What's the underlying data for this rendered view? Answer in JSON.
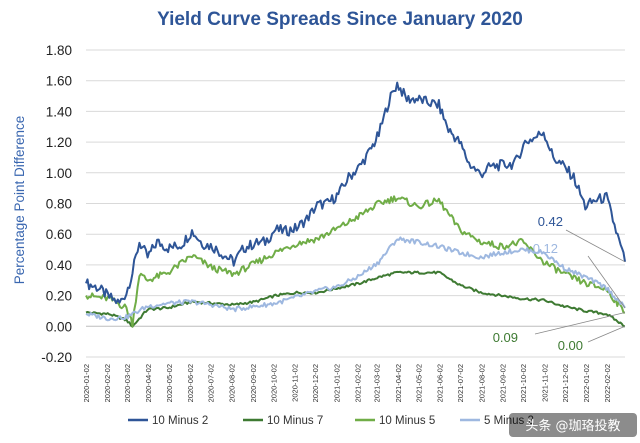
{
  "chart_data": {
    "type": "line",
    "title": "Yield Curve Spreads Since January 2020",
    "ylabel": "Percentage Point Difference",
    "xlabel": "",
    "ylim": [
      -0.2,
      1.8
    ],
    "yticks": [
      "1.80",
      "1.60",
      "1.40",
      "1.20",
      "1.00",
      "0.80",
      "0.60",
      "0.40",
      "0.20",
      "0.00",
      "-0.20"
    ],
    "x_tick_labels": [
      "2020-01-02",
      "2020-02-02",
      "2020-03-02",
      "2020-04-02",
      "2020-05-02",
      "2020-06-02",
      "2020-07-02",
      "2020-08-02",
      "2020-09-02",
      "2020-10-02",
      "2020-11-02",
      "2020-12-02",
      "2021-01-02",
      "2021-02-02",
      "2021-03-02",
      "2021-04-02",
      "2021-05-02",
      "2021-06-02",
      "2021-07-02",
      "2021-08-02",
      "2021-09-02",
      "2021-10-02",
      "2021-11-02",
      "2021-12-02",
      "2022-01-02",
      "2022-02-02"
    ],
    "grid": true,
    "legend_position": "bottom",
    "series": [
      {
        "name": "10 Minus 2",
        "color": "#2E5597",
        "points": [
          [
            "2020-01-02",
            0.28
          ],
          [
            "2020-01-20",
            0.25
          ],
          [
            "2020-02-05",
            0.19
          ],
          [
            "2020-02-20",
            0.15
          ],
          [
            "2020-03-01",
            0.22
          ],
          [
            "2020-03-10",
            0.35
          ],
          [
            "2020-03-20",
            0.55
          ],
          [
            "2020-04-01",
            0.45
          ],
          [
            "2020-04-15",
            0.55
          ],
          [
            "2020-05-01",
            0.51
          ],
          [
            "2020-05-20",
            0.53
          ],
          [
            "2020-06-05",
            0.62
          ],
          [
            "2020-06-20",
            0.54
          ],
          [
            "2020-07-05",
            0.52
          ],
          [
            "2020-07-20",
            0.47
          ],
          [
            "2020-08-05",
            0.42
          ],
          [
            "2020-08-20",
            0.51
          ],
          [
            "2020-09-05",
            0.54
          ],
          [
            "2020-09-20",
            0.55
          ],
          [
            "2020-10-05",
            0.63
          ],
          [
            "2020-10-20",
            0.62
          ],
          [
            "2020-11-05",
            0.64
          ],
          [
            "2020-11-20",
            0.7
          ],
          [
            "2020-12-05",
            0.79
          ],
          [
            "2020-12-20",
            0.8
          ],
          [
            "2021-01-05",
            0.86
          ],
          [
            "2021-01-20",
            0.97
          ],
          [
            "2021-02-05",
            1.04
          ],
          [
            "2021-02-20",
            1.14
          ],
          [
            "2021-03-05",
            1.25
          ],
          [
            "2021-03-20",
            1.47
          ],
          [
            "2021-04-01",
            1.58
          ],
          [
            "2021-04-15",
            1.48
          ],
          [
            "2021-05-01",
            1.48
          ],
          [
            "2021-05-15",
            1.46
          ],
          [
            "2021-06-01",
            1.44
          ],
          [
            "2021-06-15",
            1.28
          ],
          [
            "2021-07-01",
            1.2
          ],
          [
            "2021-07-15",
            1.06
          ],
          [
            "2021-08-01",
            0.99
          ],
          [
            "2021-08-15",
            1.04
          ],
          [
            "2021-09-01",
            1.05
          ],
          [
            "2021-09-20",
            1.06
          ],
          [
            "2021-10-05",
            1.2
          ],
          [
            "2021-10-20",
            1.23
          ],
          [
            "2021-11-01",
            1.27
          ],
          [
            "2021-11-15",
            1.1
          ],
          [
            "2021-12-01",
            1.04
          ],
          [
            "2021-12-15",
            0.97
          ],
          [
            "2022-01-01",
            0.78
          ],
          [
            "2022-01-15",
            0.82
          ],
          [
            "2022-02-01",
            0.84
          ],
          [
            "2022-02-15",
            0.62
          ],
          [
            "2022-02-28",
            0.42
          ]
        ]
      },
      {
        "name": "10 Minus 7",
        "color": "#3E7A32",
        "points": [
          [
            "2020-01-02",
            0.09
          ],
          [
            "2020-02-05",
            0.08
          ],
          [
            "2020-03-01",
            0.04
          ],
          [
            "2020-03-10",
            0.0
          ],
          [
            "2020-04-01",
            0.11
          ],
          [
            "2020-05-01",
            0.12
          ],
          [
            "2020-06-05",
            0.16
          ],
          [
            "2020-07-05",
            0.15
          ],
          [
            "2020-08-05",
            0.14
          ],
          [
            "2020-09-05",
            0.16
          ],
          [
            "2020-10-05",
            0.2
          ],
          [
            "2020-11-05",
            0.22
          ],
          [
            "2020-12-05",
            0.22
          ],
          [
            "2021-01-05",
            0.25
          ],
          [
            "2021-02-05",
            0.28
          ],
          [
            "2021-03-05",
            0.32
          ],
          [
            "2021-04-01",
            0.35
          ],
          [
            "2021-05-01",
            0.35
          ],
          [
            "2021-06-01",
            0.35
          ],
          [
            "2021-07-01",
            0.27
          ],
          [
            "2021-08-01",
            0.22
          ],
          [
            "2021-09-01",
            0.2
          ],
          [
            "2021-10-01",
            0.18
          ],
          [
            "2021-11-01",
            0.17
          ],
          [
            "2021-12-01",
            0.13
          ],
          [
            "2022-01-01",
            0.1
          ],
          [
            "2022-02-01",
            0.08
          ],
          [
            "2022-02-28",
            0.0
          ]
        ]
      },
      {
        "name": "10 Minus 5",
        "color": "#70AD47",
        "points": [
          [
            "2020-01-02",
            0.2
          ],
          [
            "2020-02-05",
            0.18
          ],
          [
            "2020-03-01",
            0.12
          ],
          [
            "2020-03-10",
            0.02
          ],
          [
            "2020-03-20",
            0.34
          ],
          [
            "2020-04-01",
            0.3
          ],
          [
            "2020-05-01",
            0.35
          ],
          [
            "2020-06-05",
            0.46
          ],
          [
            "2020-07-05",
            0.38
          ],
          [
            "2020-08-05",
            0.34
          ],
          [
            "2020-09-05",
            0.41
          ],
          [
            "2020-10-05",
            0.48
          ],
          [
            "2020-11-05",
            0.54
          ],
          [
            "2020-12-05",
            0.57
          ],
          [
            "2021-01-05",
            0.64
          ],
          [
            "2021-02-05",
            0.72
          ],
          [
            "2021-03-05",
            0.8
          ],
          [
            "2021-04-01",
            0.84
          ],
          [
            "2021-05-01",
            0.78
          ],
          [
            "2021-06-01",
            0.82
          ],
          [
            "2021-07-01",
            0.63
          ],
          [
            "2021-08-01",
            0.55
          ],
          [
            "2021-09-01",
            0.52
          ],
          [
            "2021-10-01",
            0.55
          ],
          [
            "2021-11-01",
            0.42
          ],
          [
            "2021-12-01",
            0.34
          ],
          [
            "2022-01-01",
            0.28
          ],
          [
            "2022-02-01",
            0.24
          ],
          [
            "2022-02-28",
            0.09
          ]
        ]
      },
      {
        "name": "5 Minus 2",
        "color": "#9EB8E0",
        "points": [
          [
            "2020-01-02",
            0.08
          ],
          [
            "2020-02-05",
            0.05
          ],
          [
            "2020-03-01",
            0.06
          ],
          [
            "2020-03-10",
            0.08
          ],
          [
            "2020-04-01",
            0.13
          ],
          [
            "2020-05-01",
            0.15
          ],
          [
            "2020-06-05",
            0.16
          ],
          [
            "2020-07-05",
            0.14
          ],
          [
            "2020-08-05",
            0.11
          ],
          [
            "2020-09-05",
            0.13
          ],
          [
            "2020-10-05",
            0.15
          ],
          [
            "2020-11-05",
            0.19
          ],
          [
            "2020-12-05",
            0.23
          ],
          [
            "2021-01-05",
            0.26
          ],
          [
            "2021-02-05",
            0.33
          ],
          [
            "2021-03-05",
            0.42
          ],
          [
            "2021-04-01",
            0.57
          ],
          [
            "2021-05-01",
            0.55
          ],
          [
            "2021-06-01",
            0.52
          ],
          [
            "2021-07-01",
            0.48
          ],
          [
            "2021-08-01",
            0.45
          ],
          [
            "2021-09-01",
            0.48
          ],
          [
            "2021-10-01",
            0.5
          ],
          [
            "2021-11-01",
            0.48
          ],
          [
            "2021-12-01",
            0.38
          ],
          [
            "2022-01-01",
            0.32
          ],
          [
            "2022-02-01",
            0.25
          ],
          [
            "2022-02-28",
            0.12
          ]
        ]
      }
    ],
    "annotations": [
      {
        "text": "0.42",
        "series": "10 Minus 2"
      },
      {
        "text": "0.12",
        "series": "5 Minus 2"
      },
      {
        "text": "0.09",
        "series": "10 Minus 5"
      },
      {
        "text": "0.00",
        "series": "10 Minus 7"
      }
    ]
  },
  "watermark": "头条 @珈珞投教"
}
